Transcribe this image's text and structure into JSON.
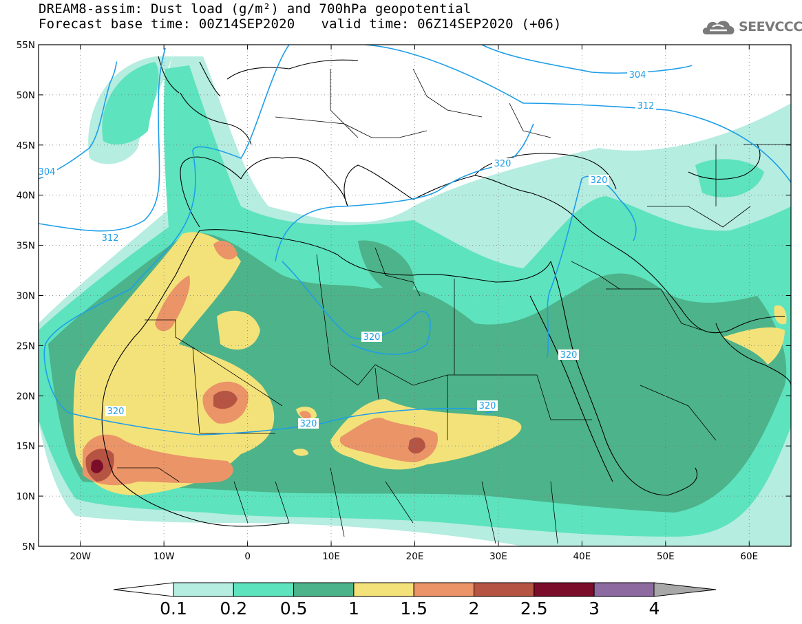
{
  "header": {
    "title_line1": "DREAM8-assim: Dust load (g/m²) and 700hPa geopotential",
    "base_time": "Forecast base time: 00Z14SEP2020",
    "valid_time": "valid time: 06Z14SEP2020 (+06)"
  },
  "logo": {
    "text": "SEEVCCC",
    "icon": "cloud-icon",
    "color": "#7a7a7a"
  },
  "map": {
    "type": "filled-contour",
    "lon_range": [
      -25,
      65
    ],
    "lat_range": [
      5,
      55
    ],
    "lat_ticks": [
      "55N",
      "50N",
      "45N",
      "40N",
      "35N",
      "30N",
      "25N",
      "20N",
      "15N",
      "10N",
      "5N"
    ],
    "lon_ticks": [
      "20W",
      "10W",
      "0",
      "10E",
      "20E",
      "30E",
      "40E",
      "50E",
      "60E"
    ],
    "ocean_color": "#ffffff",
    "grid": "dotted"
  },
  "geopotential": {
    "color": "#1e9ee8",
    "labels": [
      "304",
      "304",
      "312",
      "312",
      "320",
      "320",
      "320",
      "320",
      "320",
      "320",
      "320"
    ]
  },
  "colorbar": {
    "levels": [
      "0.1",
      "0.2",
      "0.5",
      "1",
      "1.5",
      "2",
      "2.5",
      "3",
      "4"
    ],
    "colors": [
      "#b5ede0",
      "#5de3bd",
      "#4db38a",
      "#f3e27a",
      "#ea9468",
      "#b65443",
      "#7b0c2a",
      "#8d6aa0",
      "#a8a8a8"
    ]
  }
}
